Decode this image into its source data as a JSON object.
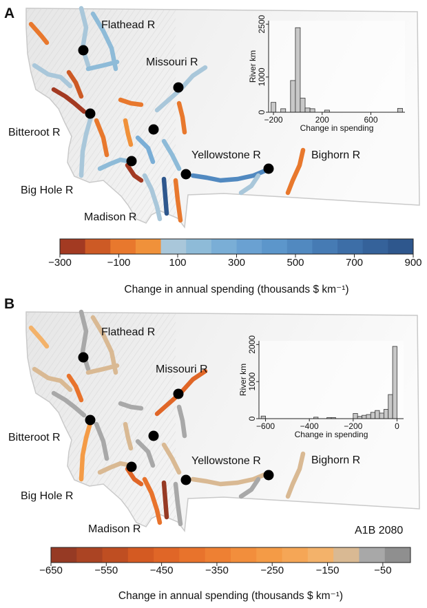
{
  "panels": [
    {
      "letter": "A",
      "river_labels": [
        "Flathead R",
        "Missouri R",
        "Bitteroot R",
        "Yellowstone R",
        "Bighorn R",
        "Big Hole R",
        "Madison R"
      ],
      "scenario_label": "",
      "palette": [
        "#a33a22",
        "#cd5a25",
        "#e8782d",
        "#f0913a",
        "#a9c7da",
        "#8ebbd8",
        "#7aaed6",
        "#6aa1d2",
        "#5c96cb",
        "#5189c0",
        "#467bb4",
        "#3d6ea7",
        "#35629a",
        "#2e578d"
      ],
      "river_colors": [
        "#e8782d",
        "#a9c7da",
        "#8ebbd8",
        "#a9c7da",
        "#a33a22",
        "#cd5a25",
        "#e8782d",
        "#8ebbd8",
        "#a9c7da",
        "#e8782d",
        "#8ebbd8",
        "#a33a22",
        "#f0913a",
        "#a9c7da",
        "#7aaed6",
        "#2e578d",
        "#e8782d",
        "#a9c7da",
        "#8ebbd8",
        "#e8782d",
        "#5189c0",
        "#a9c7da",
        "#e8782d"
      ],
      "colorbar": {
        "ticks": [
          "−300",
          "−100",
          "100",
          "300",
          "500",
          "700",
          "900"
        ],
        "min": -300,
        "max": 900,
        "tick_values": [
          -300,
          -100,
          100,
          300,
          500,
          700,
          900
        ],
        "title": "Change in annual spending (thousands $ km⁻¹)"
      },
      "chart_data": {
        "type": "bar",
        "ylabel": "River km",
        "xlabel": "Change in spending",
        "bin_width": 40,
        "x": [
          -200,
          -160,
          -120,
          -80,
          -40,
          0,
          40,
          80,
          120,
          160,
          200,
          240,
          280,
          320,
          360,
          400,
          440,
          480,
          520,
          560,
          600,
          640,
          680,
          720,
          760,
          800,
          840
        ],
        "values": [
          280,
          0,
          100,
          0,
          900,
          2400,
          400,
          120,
          100,
          0,
          0,
          60,
          0,
          0,
          0,
          0,
          0,
          0,
          0,
          0,
          0,
          0,
          0,
          0,
          0,
          0,
          110
        ],
        "xlim": [
          -240,
          880
        ],
        "ylim": [
          0,
          2600
        ],
        "xticks": [
          -200,
          200,
          600
        ],
        "xtick_labels": [
          "−200",
          "200",
          "600"
        ],
        "yticks": [
          0,
          1000,
          2500
        ],
        "ytick_labels": [
          "0",
          "1000",
          "2500"
        ]
      }
    },
    {
      "letter": "B",
      "river_labels": [
        "Flathead R",
        "Missouri R",
        "Bitteroot R",
        "Yellowstone R",
        "Bighorn R",
        "Big Hole R",
        "Madison R"
      ],
      "scenario_label": "A1B 2080",
      "palette": [
        "#963a24",
        "#ab4423",
        "#bf4e22",
        "#d45a22",
        "#e06627",
        "#e8732c",
        "#ee8033",
        "#f28e3c",
        "#f49b46",
        "#f5a656",
        "#f3b26a",
        "#d9b993",
        "#a8a8a8",
        "#8f8f8f"
      ],
      "river_colors": [
        "#f3b26a",
        "#a8a8a8",
        "#d9b993",
        "#d9b993",
        "#a8a8a8",
        "#e8732c",
        "#a8a8a8",
        "#d9b993",
        "#f49b46",
        "#a8a8a8",
        "#d9b993",
        "#e06627",
        "#d9b993",
        "#e8732c",
        "#a8a8a8",
        "#963a24",
        "#a8a8a8",
        "#e06627",
        "#d9b993",
        "#a8a8a8",
        "#d9b993",
        "#a8a8a8",
        "#d9b993"
      ],
      "colorbar": {
        "ticks": [
          "−650",
          "−550",
          "−450",
          "−350",
          "−250",
          "−150",
          "−50"
        ],
        "min": -650,
        "max": 0,
        "tick_values": [
          -650,
          -550,
          -450,
          -350,
          -250,
          -150,
          -50
        ],
        "title": "Change in annual spending (thousands $ km⁻¹)"
      },
      "chart_data": {
        "type": "bar",
        "ylabel": "River km",
        "xlabel": "Change in spending",
        "bin_width": 20,
        "x": [
          -610,
          -590,
          -570,
          -550,
          -530,
          -510,
          -490,
          -470,
          -450,
          -430,
          -410,
          -390,
          -370,
          -350,
          -330,
          -310,
          -290,
          -270,
          -250,
          -230,
          -210,
          -190,
          -170,
          -150,
          -130,
          -110,
          -90,
          -70,
          -50,
          -30,
          -10
        ],
        "values": [
          70,
          0,
          0,
          0,
          0,
          0,
          0,
          0,
          0,
          0,
          0,
          0,
          40,
          0,
          0,
          30,
          30,
          0,
          0,
          0,
          0,
          140,
          60,
          90,
          110,
          170,
          220,
          150,
          250,
          650,
          1950
        ],
        "xlim": [
          -630,
          30
        ],
        "ylim": [
          0,
          2100
        ],
        "xticks": [
          -600,
          -400,
          -200,
          0
        ],
        "xtick_labels": [
          "−600",
          "−400",
          "−200",
          "0"
        ],
        "yticks": [
          0,
          1000,
          2000
        ],
        "ytick_labels": [
          "0",
          "1000",
          "2000"
        ]
      }
    }
  ]
}
